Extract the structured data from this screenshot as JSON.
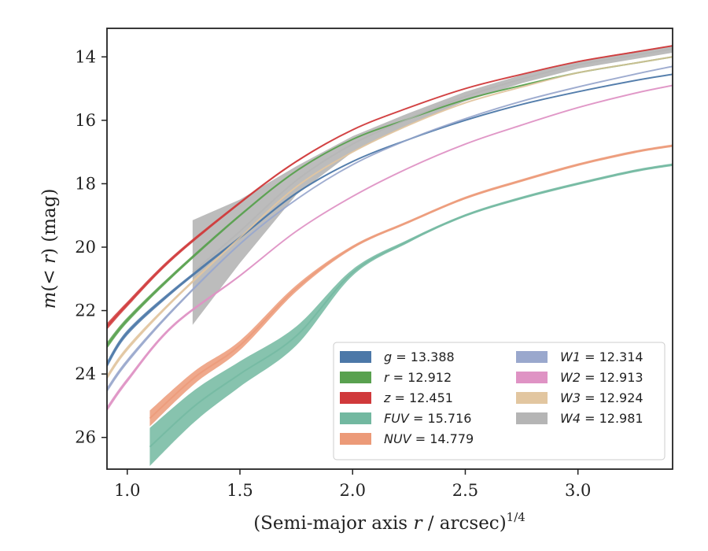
{
  "chart_data": {
    "type": "line",
    "xlabel_main": "(Semi-major axis ",
    "xlabel_var": "r",
    "xlabel_tail": " / arcsec)",
    "xlabel_exp": "1/4",
    "ylabel_pre": "m(< ",
    "ylabel_var": "r",
    "ylabel_post": ") (mag)",
    "xlim": [
      0.91,
      3.42
    ],
    "ylim": [
      27.0,
      13.1
    ],
    "y_inverted": true,
    "xticks": [
      1.0,
      1.5,
      2.0,
      2.5,
      3.0
    ],
    "xtick_labels": [
      "1.0",
      "1.5",
      "2.0",
      "2.5",
      "3.0"
    ],
    "yticks": [
      14,
      16,
      18,
      20,
      22,
      24,
      26
    ],
    "ytick_labels": [
      "14",
      "16",
      "18",
      "20",
      "22",
      "24",
      "26"
    ],
    "grid": false,
    "legend_position": "lower-right",
    "legend_columns": 2,
    "series": [
      {
        "band": "g",
        "value": "13.388",
        "color": "#4c78a8",
        "x": [
          0.91,
          1.0,
          1.2,
          1.5,
          1.75,
          2.0,
          2.25,
          2.5,
          2.75,
          3.0,
          3.25,
          3.42
        ],
        "y": [
          23.7,
          22.7,
          21.4,
          19.7,
          18.3,
          17.3,
          16.6,
          16.0,
          15.5,
          15.1,
          14.75,
          14.55
        ],
        "band_halfwidth": [
          0.1,
          0.08,
          0.06,
          0.04,
          0.03,
          0.02,
          0.02,
          0.02,
          0.02,
          0.02,
          0.02,
          0.02
        ]
      },
      {
        "band": "r",
        "value": "12.912",
        "color": "#59a14f",
        "x": [
          0.91,
          1.0,
          1.2,
          1.5,
          1.75,
          2.0,
          2.25,
          2.5,
          2.75,
          3.0,
          3.25,
          3.42
        ],
        "y": [
          23.1,
          22.3,
          20.9,
          19.0,
          17.6,
          16.6,
          15.95,
          15.35,
          14.9,
          14.5,
          14.2,
          14.0
        ],
        "band_halfwidth": [
          0.1,
          0.08,
          0.06,
          0.04,
          0.03,
          0.02,
          0.02,
          0.02,
          0.02,
          0.02,
          0.02,
          0.02
        ]
      },
      {
        "band": "z",
        "value": "12.451",
        "color": "#d0393b",
        "x": [
          0.91,
          1.0,
          1.2,
          1.5,
          1.75,
          2.0,
          2.25,
          2.5,
          2.75,
          3.0,
          3.25,
          3.42
        ],
        "y": [
          22.5,
          21.8,
          20.35,
          18.6,
          17.3,
          16.3,
          15.6,
          15.0,
          14.55,
          14.15,
          13.85,
          13.65
        ],
        "band_halfwidth": [
          0.1,
          0.08,
          0.06,
          0.04,
          0.03,
          0.02,
          0.02,
          0.02,
          0.02,
          0.02,
          0.02,
          0.02
        ]
      },
      {
        "band": "FUV",
        "value": "15.716",
        "color": "#72b8a0",
        "x": [
          1.1,
          1.3,
          1.5,
          1.75,
          2.0,
          2.25,
          2.5,
          2.75,
          3.0,
          3.25,
          3.42
        ],
        "y": [
          26.3,
          25.0,
          24.0,
          22.8,
          20.8,
          19.8,
          19.0,
          18.45,
          18.0,
          17.6,
          17.4
        ],
        "band_halfwidth": [
          0.6,
          0.5,
          0.4,
          0.3,
          0.1,
          0.05,
          0.04,
          0.04,
          0.04,
          0.04,
          0.04
        ]
      },
      {
        "band": "NUV",
        "value": "14.779",
        "color": "#ec9a78",
        "x": [
          1.1,
          1.3,
          1.5,
          1.75,
          2.0,
          2.25,
          2.5,
          2.75,
          3.0,
          3.25,
          3.42
        ],
        "y": [
          25.4,
          24.1,
          23.1,
          21.3,
          20.0,
          19.2,
          18.45,
          17.9,
          17.4,
          17.0,
          16.8
        ],
        "band_halfwidth": [
          0.25,
          0.2,
          0.15,
          0.1,
          0.05,
          0.04,
          0.04,
          0.04,
          0.04,
          0.04,
          0.04
        ]
      },
      {
        "band": "W1",
        "value": "12.314",
        "color": "#9aa8cd",
        "x": [
          0.91,
          1.0,
          1.2,
          1.5,
          1.75,
          2.0,
          2.25,
          2.5,
          2.75,
          3.0,
          3.25,
          3.42
        ],
        "y": [
          24.5,
          23.6,
          22.0,
          19.9,
          18.5,
          17.4,
          16.6,
          15.95,
          15.4,
          14.95,
          14.55,
          14.3
        ],
        "band_halfwidth": [
          0.08,
          0.07,
          0.05,
          0.03,
          0.02,
          0.02,
          0.02,
          0.02,
          0.02,
          0.02,
          0.02,
          0.02
        ]
      },
      {
        "band": "W2",
        "value": "12.913",
        "color": "#df93c4",
        "x": [
          0.91,
          1.0,
          1.2,
          1.5,
          1.75,
          2.0,
          2.25,
          2.5,
          2.75,
          3.0,
          3.25,
          3.42
        ],
        "y": [
          25.1,
          24.2,
          22.5,
          20.9,
          19.5,
          18.4,
          17.5,
          16.75,
          16.15,
          15.6,
          15.15,
          14.9
        ],
        "band_halfwidth": [
          0.08,
          0.07,
          0.05,
          0.03,
          0.02,
          0.02,
          0.02,
          0.02,
          0.02,
          0.02,
          0.02,
          0.02
        ]
      },
      {
        "band": "W3",
        "value": "12.924",
        "color": "#e2c6a0",
        "x": [
          0.91,
          1.0,
          1.2,
          1.5,
          1.75,
          2.0,
          2.25,
          2.5,
          2.75,
          3.0,
          3.25,
          3.42
        ],
        "y": [
          24.1,
          23.2,
          21.7,
          19.7,
          18.1,
          17.0,
          16.15,
          15.45,
          14.95,
          14.5,
          14.2,
          14.0
        ],
        "band_halfwidth": [
          0.08,
          0.07,
          0.05,
          0.03,
          0.02,
          0.02,
          0.02,
          0.02,
          0.02,
          0.02,
          0.02,
          0.02
        ]
      },
      {
        "band": "W4",
        "value": "12.981",
        "color": "#b5b5b5",
        "x": [
          1.29,
          1.5,
          1.75,
          2.0,
          2.25,
          2.5,
          2.75,
          3.0,
          3.25,
          3.42
        ],
        "y": [
          20.8,
          19.5,
          17.9,
          16.75,
          15.95,
          15.25,
          14.7,
          14.25,
          13.95,
          13.75
        ],
        "band_halfwidth": [
          1.65,
          1.0,
          0.45,
          0.25,
          0.18,
          0.15,
          0.13,
          0.12,
          0.12,
          0.12
        ]
      }
    ]
  }
}
